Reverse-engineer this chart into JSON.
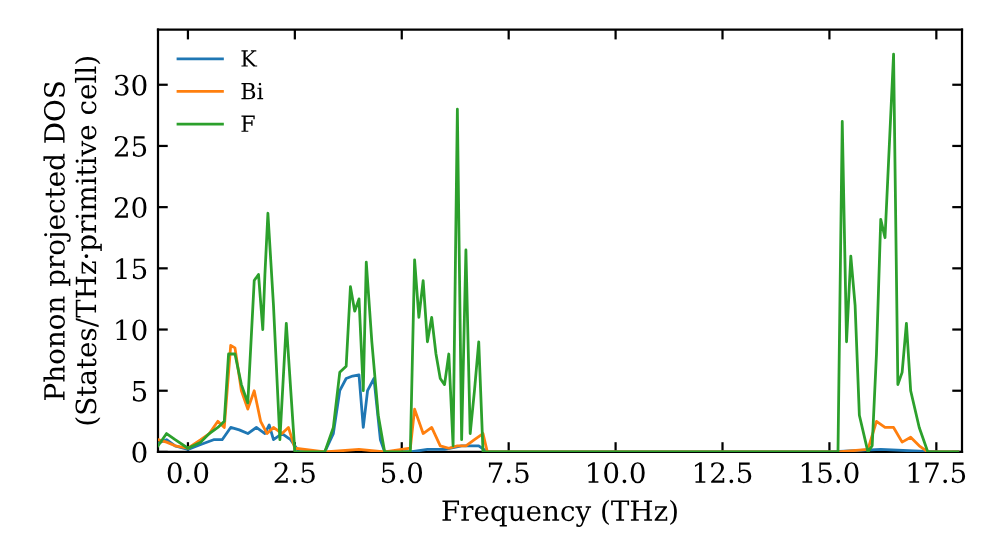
{
  "chart_data": {
    "type": "line",
    "xlabel": "Frequency (THz)",
    "ylabel": "Phonon projected DOS\n(States/THz·primitive cell)",
    "xlim": [
      -0.7,
      18.1
    ],
    "ylim": [
      0,
      34.5
    ],
    "xticks": [
      {
        "value": 0,
        "label": "0.0"
      },
      {
        "value": 2.5,
        "label": "2.5"
      },
      {
        "value": 5,
        "label": "5.0"
      },
      {
        "value": 7.5,
        "label": "7.5"
      },
      {
        "value": 10,
        "label": "10.0"
      },
      {
        "value": 12.5,
        "label": "12.5"
      },
      {
        "value": 15,
        "label": "15.0"
      },
      {
        "value": 17.5,
        "label": "17.5"
      }
    ],
    "yticks": [
      0,
      5,
      10,
      15,
      20,
      25,
      30
    ],
    "grid": false,
    "legend": "top left",
    "marker": "none",
    "line_style": "solid",
    "series": [
      {
        "name": "K",
        "color": "#1f77b4",
        "x": [
          -0.7,
          -0.5,
          -0.3,
          0,
          0.3,
          0.6,
          0.8,
          1.0,
          1.2,
          1.4,
          1.6,
          1.8,
          1.9,
          2.0,
          2.2,
          2.4,
          2.6,
          3.2,
          3.4,
          3.55,
          3.7,
          3.85,
          4.0,
          4.1,
          4.2,
          4.35,
          4.5,
          4.6,
          5.2,
          5.6,
          6.0,
          6.4,
          6.8,
          7.0,
          15.0,
          16.2,
          17.5,
          18.0
        ],
        "values": [
          0.7,
          1.0,
          0.5,
          0.2,
          0.6,
          1.0,
          1.0,
          2.0,
          1.8,
          1.5,
          2.0,
          1.5,
          2.2,
          1.0,
          1.5,
          1.0,
          0,
          0,
          1.5,
          5.0,
          6.0,
          6.2,
          6.3,
          2.0,
          5.0,
          6.0,
          1.0,
          0,
          0,
          0.2,
          0.2,
          0.5,
          0.5,
          0,
          0,
          0.2,
          0,
          0
        ]
      },
      {
        "name": "Bi",
        "color": "#ff7f0e",
        "x": [
          -0.7,
          -0.5,
          -0.3,
          0,
          0.3,
          0.5,
          0.7,
          0.85,
          1.0,
          1.1,
          1.25,
          1.4,
          1.55,
          1.7,
          1.85,
          2.0,
          2.2,
          2.35,
          2.5,
          3.2,
          4.0,
          4.6,
          5.2,
          5.3,
          5.5,
          5.7,
          5.9,
          6.1,
          6.3,
          6.5,
          6.7,
          6.9,
          7.0,
          15.2,
          15.9,
          16.1,
          16.3,
          16.5,
          16.7,
          16.9,
          17.1,
          17.3,
          18.0
        ],
        "values": [
          1.0,
          0.8,
          0.5,
          0.3,
          1.0,
          1.5,
          2.5,
          2.0,
          8.7,
          8.5,
          5.0,
          3.5,
          5.0,
          2.5,
          1.5,
          2.0,
          1.5,
          2.0,
          0.3,
          0,
          0.2,
          0,
          0.3,
          3.5,
          1.5,
          2.0,
          0.5,
          0.3,
          0.5,
          0.5,
          1.0,
          1.5,
          0,
          0,
          0.2,
          2.5,
          2.0,
          2.0,
          0.8,
          1.2,
          0.5,
          0,
          0
        ]
      },
      {
        "name": "F",
        "color": "#2ca02c",
        "x": [
          -0.7,
          -0.5,
          -0.3,
          0,
          0.3,
          0.5,
          0.7,
          0.85,
          0.95,
          1.1,
          1.25,
          1.4,
          1.55,
          1.65,
          1.75,
          1.8,
          1.87,
          2.0,
          2.15,
          2.3,
          2.5,
          3.2,
          3.4,
          3.55,
          3.7,
          3.8,
          3.9,
          4.0,
          4.1,
          4.17,
          4.3,
          4.45,
          4.6,
          5.2,
          5.3,
          5.4,
          5.5,
          5.6,
          5.7,
          5.8,
          5.9,
          6.0,
          6.1,
          6.2,
          6.3,
          6.4,
          6.5,
          6.6,
          6.7,
          6.8,
          6.9,
          15.2,
          15.3,
          15.4,
          15.5,
          15.6,
          15.7,
          15.9,
          16.0,
          16.1,
          16.2,
          16.3,
          16.5,
          16.6,
          16.7,
          16.8,
          16.9,
          17.1,
          17.3,
          18.0
        ],
        "values": [
          0.5,
          1.5,
          1.0,
          0.3,
          0.8,
          1.5,
          2.0,
          2.5,
          8.0,
          8.0,
          5.5,
          4.0,
          14.0,
          14.5,
          10.0,
          14.5,
          19.5,
          12.0,
          1.0,
          10.5,
          0,
          0,
          2.0,
          6.5,
          7.0,
          13.5,
          11.5,
          12.5,
          5.0,
          15.5,
          9.0,
          3.0,
          0,
          0,
          15.7,
          11.0,
          14.0,
          9.0,
          11.0,
          8.0,
          6.0,
          5.5,
          8.0,
          0.5,
          28.0,
          1.0,
          16.5,
          1.5,
          5.0,
          9.0,
          0,
          0,
          27.0,
          9.0,
          16.0,
          12.0,
          3.0,
          0,
          0.5,
          8.0,
          19.0,
          17.5,
          32.5,
          5.5,
          6.5,
          10.5,
          5.0,
          2.0,
          0,
          0
        ]
      }
    ]
  }
}
